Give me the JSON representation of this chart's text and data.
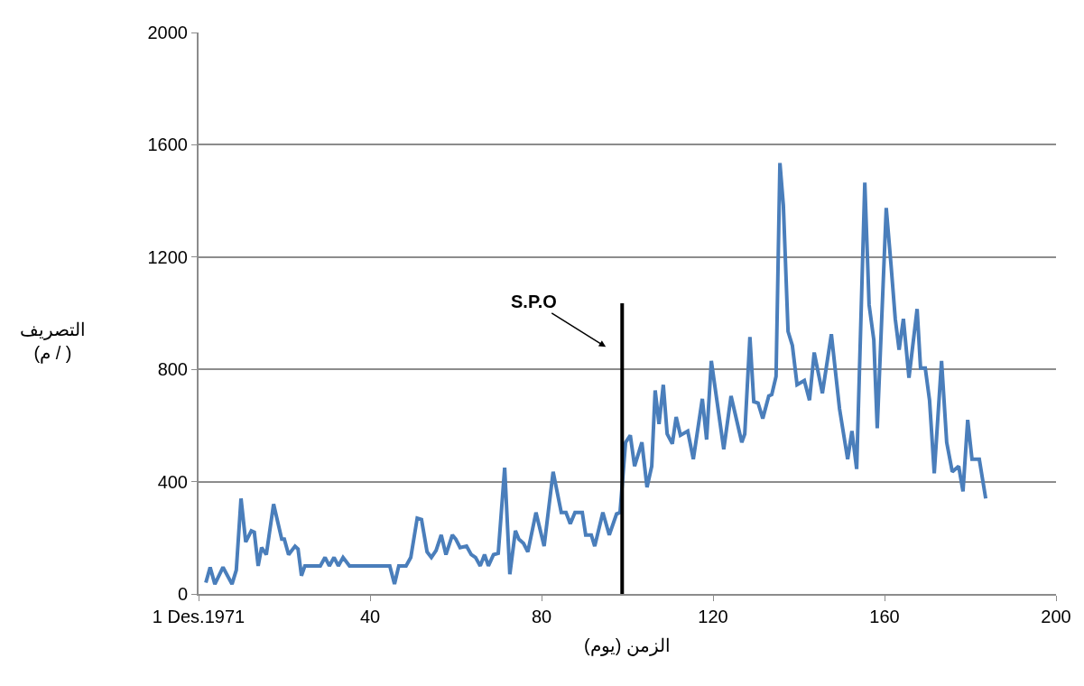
{
  "chart_data": {
    "type": "line",
    "xlabel": "الزمن (يوم)",
    "ylabel": "التصريف\n(م / )",
    "xlim": [
      0,
      200
    ],
    "xticks": [
      {
        "value": 0,
        "label": "1 Des.1971"
      },
      40,
      80,
      120,
      160,
      200
    ],
    "ylim": [
      0,
      2000
    ],
    "yticks": [
      0,
      400,
      800,
      1200,
      1600,
      2000
    ],
    "grid": "y",
    "marker": "none",
    "line_style": "solid",
    "annotations": [
      "S.P.O"
    ],
    "series": [
      {
        "color": "#4a7ebb",
        "x": [
          1.7,
          2.7,
          3.8,
          5.7,
          7.8,
          8.8,
          9.9,
          11,
          12.3,
          13,
          13.9,
          14.7,
          15.8,
          17.5,
          19.4,
          20,
          21,
          22.5,
          23.2,
          24,
          24.8,
          28.4,
          29.5,
          30.5,
          31.6,
          32.6,
          33.7,
          35.2,
          44.6,
          45.7,
          46.7,
          48.4,
          49.5,
          51,
          52,
          53.3,
          54.3,
          55.4,
          56.6,
          57.7,
          59.2,
          60,
          61,
          62.5,
          63.6,
          64.6,
          65.7,
          66.7,
          67.6,
          68.8,
          69.9,
          71.4,
          72.6,
          73.9,
          74.7,
          75.8,
          76.8,
          78.7,
          80.6,
          82.7,
          84.6,
          85.7,
          86.7,
          87.8,
          89.5,
          90.3,
          91.6,
          92.4,
          94.3,
          95.8,
          97.5,
          98.3,
          99.6,
          100.7,
          101.7,
          103.4,
          104.6,
          105.7,
          106.5,
          107.4,
          108.4,
          109.3,
          110.5,
          111.4,
          112.4,
          114.1,
          115.4,
          117.5,
          118.5,
          119.6,
          122.5,
          124.2,
          126.7,
          127.4,
          128.6,
          129.5,
          130.5,
          131.6,
          133,
          133.7,
          134.7,
          135.6,
          136.4,
          137.5,
          138.5,
          139.6,
          141.3,
          142.5,
          143.6,
          145.5,
          147.6,
          149.5,
          151.4,
          152.4,
          153.5,
          155.4,
          156.4,
          157.5,
          158.3,
          160.4,
          161.5,
          162.5,
          163.4,
          164.4,
          165.7,
          167.6,
          168.4,
          169.5,
          170.5,
          171.6,
          173.3,
          174.5,
          175.8,
          177.3,
          178.3,
          179.4,
          180.4,
          182.1,
          183.6
        ],
        "values": [
          40,
          95,
          35,
          95,
          35,
          85,
          340,
          185,
          225,
          220,
          100,
          165,
          140,
          320,
          195,
          195,
          140,
          170,
          160,
          65,
          100,
          100,
          130,
          100,
          130,
          100,
          130,
          100,
          100,
          35,
          100,
          100,
          130,
          270,
          265,
          150,
          130,
          155,
          210,
          140,
          210,
          195,
          165,
          170,
          140,
          130,
          100,
          140,
          100,
          140,
          145,
          450,
          70,
          225,
          195,
          180,
          150,
          290,
          170,
          435,
          290,
          290,
          250,
          290,
          290,
          210,
          210,
          170,
          290,
          210,
          285,
          290,
          540,
          565,
          455,
          540,
          380,
          455,
          725,
          605,
          745,
          570,
          535,
          630,
          565,
          580,
          480,
          695,
          550,
          830,
          515,
          705,
          540,
          570,
          915,
          685,
          680,
          625,
          705,
          710,
          775,
          1535,
          1385,
          935,
          885,
          745,
          760,
          690,
          860,
          715,
          925,
          660,
          480,
          580,
          445,
          1465,
          1030,
          905,
          590,
          1375,
          1175,
          980,
          870,
          980,
          770,
          1015,
          805,
          805,
          690,
          430,
          830,
          540,
          435,
          455,
          365,
          620,
          480,
          480,
          340
        ]
      },
      {
        "color": "#000000",
        "x": [
          98.8,
          98.8
        ],
        "values": [
          0,
          1035
        ]
      }
    ]
  }
}
